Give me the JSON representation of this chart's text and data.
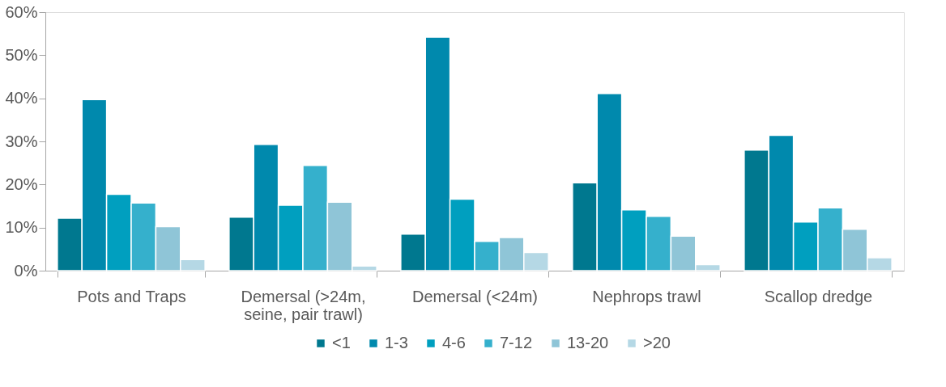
{
  "chart_data": {
    "type": "bar",
    "categories": [
      "Pots and Traps",
      "Demersal (>24m, seine, pair trawl)",
      "Demersal (<24m)",
      "Nephrops trawl",
      "Scallop dredge"
    ],
    "series": [
      {
        "name": "<1",
        "color": "#00788f",
        "values": [
          12.2,
          12.4,
          8.5,
          20.4,
          28.0
        ]
      },
      {
        "name": "1-3",
        "color": "#0089ad",
        "values": [
          39.7,
          29.3,
          54.2,
          41.1,
          31.4
        ]
      },
      {
        "name": "4-6",
        "color": "#009fbf",
        "values": [
          17.7,
          15.2,
          16.6,
          14.1,
          11.3
        ]
      },
      {
        "name": "7-12",
        "color": "#35b0cc",
        "values": [
          15.7,
          24.4,
          6.8,
          12.6,
          14.6
        ]
      },
      {
        "name": "13-20",
        "color": "#8fc5d7",
        "values": [
          10.2,
          15.9,
          7.7,
          8.0,
          9.6
        ]
      },
      {
        "name": ">20",
        "color": "#b5d8e5",
        "values": [
          2.6,
          1.1,
          4.2,
          1.4,
          3.0
        ]
      }
    ],
    "ylim": [
      0,
      60
    ],
    "yticks": [
      {
        "value": 0,
        "label": "0%"
      },
      {
        "value": 10,
        "label": "10%"
      },
      {
        "value": 20,
        "label": "20%"
      },
      {
        "value": 30,
        "label": "30%"
      },
      {
        "value": 40,
        "label": "40%"
      },
      {
        "value": 50,
        "label": "50%"
      },
      {
        "value": 60,
        "label": "60%"
      }
    ],
    "grid": false,
    "legend": "bottom"
  }
}
